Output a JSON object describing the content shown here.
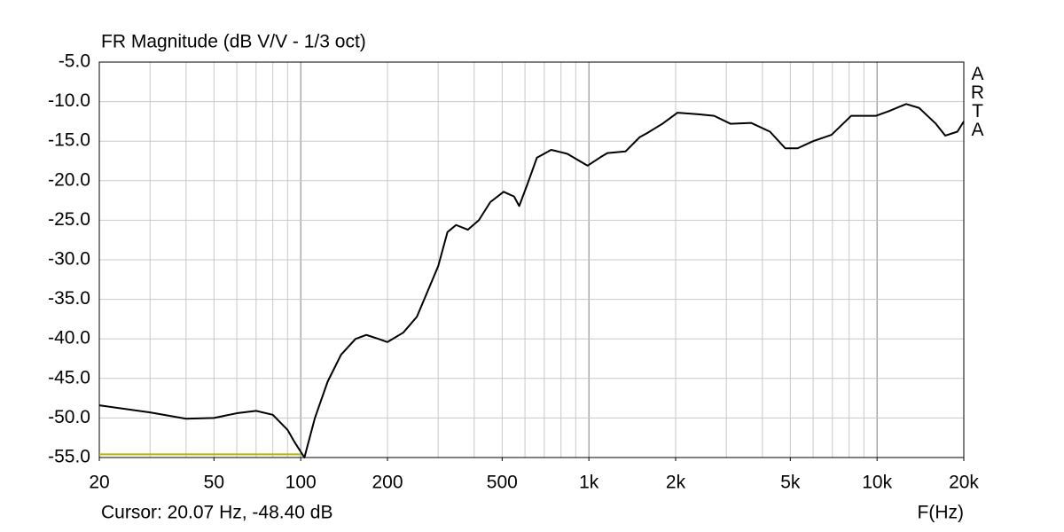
{
  "chart_data": {
    "type": "line",
    "title": "FR Magnitude (dB V/V - 1/3 oct)",
    "watermark": "ARTA",
    "cursor_text": "Cursor: 20.07 Hz, -48.40 dB",
    "x_label": "F(Hz)",
    "xscale": "log",
    "xlim": [
      20,
      20000
    ],
    "ylim": [
      -55,
      -5
    ],
    "xticks": [
      20,
      50,
      100,
      200,
      500,
      {
        "value": 1000,
        "label": "1k"
      },
      {
        "value": 2000,
        "label": "2k"
      },
      {
        "value": 5000,
        "label": "5k"
      },
      {
        "value": 10000,
        "label": "10k"
      },
      {
        "value": 20000,
        "label": "20k"
      }
    ],
    "yticks": [
      {
        "value": -5,
        "label": "-5.0"
      },
      {
        "value": -10,
        "label": "-10.0"
      },
      {
        "value": -15,
        "label": "-15.0"
      },
      {
        "value": -20,
        "label": "-20.0"
      },
      {
        "value": -25,
        "label": "-25.0"
      },
      {
        "value": -30,
        "label": "-30.0"
      },
      {
        "value": -35,
        "label": "-35.0"
      },
      {
        "value": -40,
        "label": "-40.0"
      },
      {
        "value": -45,
        "label": "-45.0"
      },
      {
        "value": -50,
        "label": "-50.0"
      },
      {
        "value": -55,
        "label": "-55.0"
      }
    ],
    "xgrid": [
      30,
      40,
      50,
      60,
      70,
      80,
      90,
      100,
      200,
      300,
      400,
      500,
      600,
      700,
      800,
      900,
      1000,
      2000,
      3000,
      4000,
      5000,
      6000,
      7000,
      8000,
      9000,
      10000
    ],
    "xgrid_major": [
      100,
      1000,
      10000
    ],
    "grid": true,
    "series": [
      {
        "color": "#000000",
        "x": [
          20,
          30,
          40,
          50,
          60,
          70,
          80,
          90,
          95,
          103,
          112,
          124,
          138,
          155,
          169,
          186,
          200,
          227,
          253,
          300,
          323,
          346,
          380,
          415,
          455,
          506,
          550,
          573,
          611,
          660,
          740,
          842,
          990,
          1100,
          1160,
          1340,
          1500,
          1590,
          1800,
          2030,
          2400,
          2720,
          3100,
          3660,
          4250,
          4800,
          5300,
          6000,
          6950,
          8130,
          9900,
          11000,
          12620,
          14000,
          16000,
          17250,
          19000,
          20000
        ],
        "values": [
          -48.4,
          -49.3,
          -50.1,
          -50.0,
          -49.4,
          -49.1,
          -49.6,
          -51.5,
          -53,
          -55,
          -50,
          -45.4,
          -42,
          -40,
          -39.5,
          -40,
          -40.4,
          -39.2,
          -37.2,
          -30.8,
          -26.5,
          -25.6,
          -26.2,
          -25,
          -22.7,
          -21.4,
          -22,
          -23.2,
          -20.5,
          -17.1,
          -16.1,
          -16.6,
          -18.1,
          -17.0,
          -16.5,
          -16.3,
          -14.5,
          -14,
          -12.8,
          -11.4,
          -11.6,
          -11.8,
          -12.8,
          -12.7,
          -13.8,
          -15.9,
          -15.9,
          -15.0,
          -14.2,
          -11.8,
          -11.8,
          -11.2,
          -10.3,
          -10.8,
          -12.8,
          -14.3,
          -13.8,
          -12.5
        ]
      },
      {
        "color": "#b4b400",
        "x": [
          20,
          100
        ],
        "values": [
          -54.6,
          -54.6
        ]
      }
    ]
  }
}
